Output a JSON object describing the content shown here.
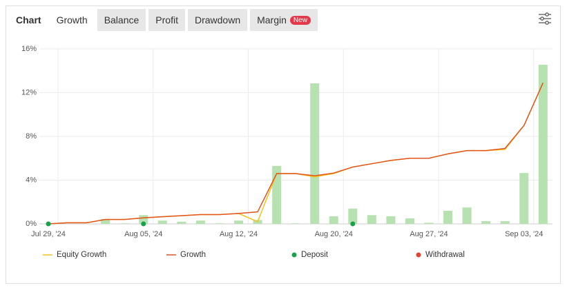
{
  "header": {
    "label": "Chart",
    "tabs": [
      "Growth",
      "Balance",
      "Profit",
      "Drawdown",
      "Margin"
    ],
    "active": 0,
    "badge": "New"
  },
  "chart_data": {
    "type": "combo",
    "categories": [
      "Jul 29, '24",
      null,
      null,
      null,
      null,
      "Aug 05, '24",
      null,
      null,
      null,
      null,
      "Aug 12, '24",
      null,
      null,
      null,
      null,
      "Aug 20, '24",
      null,
      null,
      null,
      null,
      "Aug 27, '24",
      null,
      null,
      null,
      null,
      "Sep 03, '24",
      null
    ],
    "ylim": [
      0,
      16
    ],
    "yticks": [
      {
        "value": 0,
        "label": "0%"
      },
      {
        "value": 4,
        "label": "4%"
      },
      {
        "value": 8,
        "label": "8%"
      },
      {
        "value": 12,
        "label": "12%"
      },
      {
        "value": 16,
        "label": "16%"
      }
    ],
    "grid": true,
    "series": [
      {
        "type": "bar",
        "color": "#b7e1b1",
        "values": [
          0,
          0,
          0,
          0.45,
          0.05,
          0.8,
          0.3,
          0.2,
          0.3,
          0.05,
          0.3,
          0.35,
          5.3,
          0.05,
          12.85,
          0.7,
          1.4,
          0.8,
          0.7,
          0.5,
          0.1,
          1.2,
          1.5,
          0.25,
          0.25,
          4.65,
          14.55
        ]
      },
      {
        "name": "Equity Growth",
        "type": "line",
        "color": "#f2c21b",
        "values": [
          0,
          0.1,
          0.1,
          0.4,
          0.4,
          0.55,
          0.65,
          0.75,
          0.85,
          0.85,
          0.95,
          0.2,
          4.6,
          4.6,
          4.3,
          4.6,
          5.2,
          5.5,
          5.8,
          6.0,
          6.0,
          6.4,
          6.7,
          6.7,
          6.8,
          9.0,
          12.9
        ]
      },
      {
        "name": "Growth",
        "type": "line",
        "color": "#e2531d",
        "values": [
          0,
          0.1,
          0.1,
          0.4,
          0.4,
          0.55,
          0.65,
          0.75,
          0.85,
          0.85,
          0.95,
          1.1,
          4.6,
          4.6,
          4.4,
          4.65,
          5.2,
          5.5,
          5.8,
          6.0,
          6.0,
          6.4,
          6.7,
          6.7,
          6.9,
          9.0,
          12.9
        ]
      },
      {
        "name": "Deposit",
        "type": "scatter",
        "color": "#17a34a",
        "values": [
          0,
          null,
          null,
          null,
          null,
          0,
          null,
          null,
          null,
          null,
          null,
          null,
          null,
          null,
          null,
          null,
          0,
          null,
          null,
          null,
          null,
          null,
          null,
          null,
          null,
          null,
          null
        ]
      },
      {
        "name": "Withdrawal",
        "type": "scatter",
        "color": "#e4432f",
        "values": [
          null,
          null,
          null,
          null,
          null,
          null,
          null,
          null,
          null,
          null,
          null,
          null,
          null,
          null,
          null,
          null,
          null,
          null,
          null,
          null,
          null,
          null,
          null,
          null,
          null,
          null,
          null
        ]
      }
    ]
  }
}
